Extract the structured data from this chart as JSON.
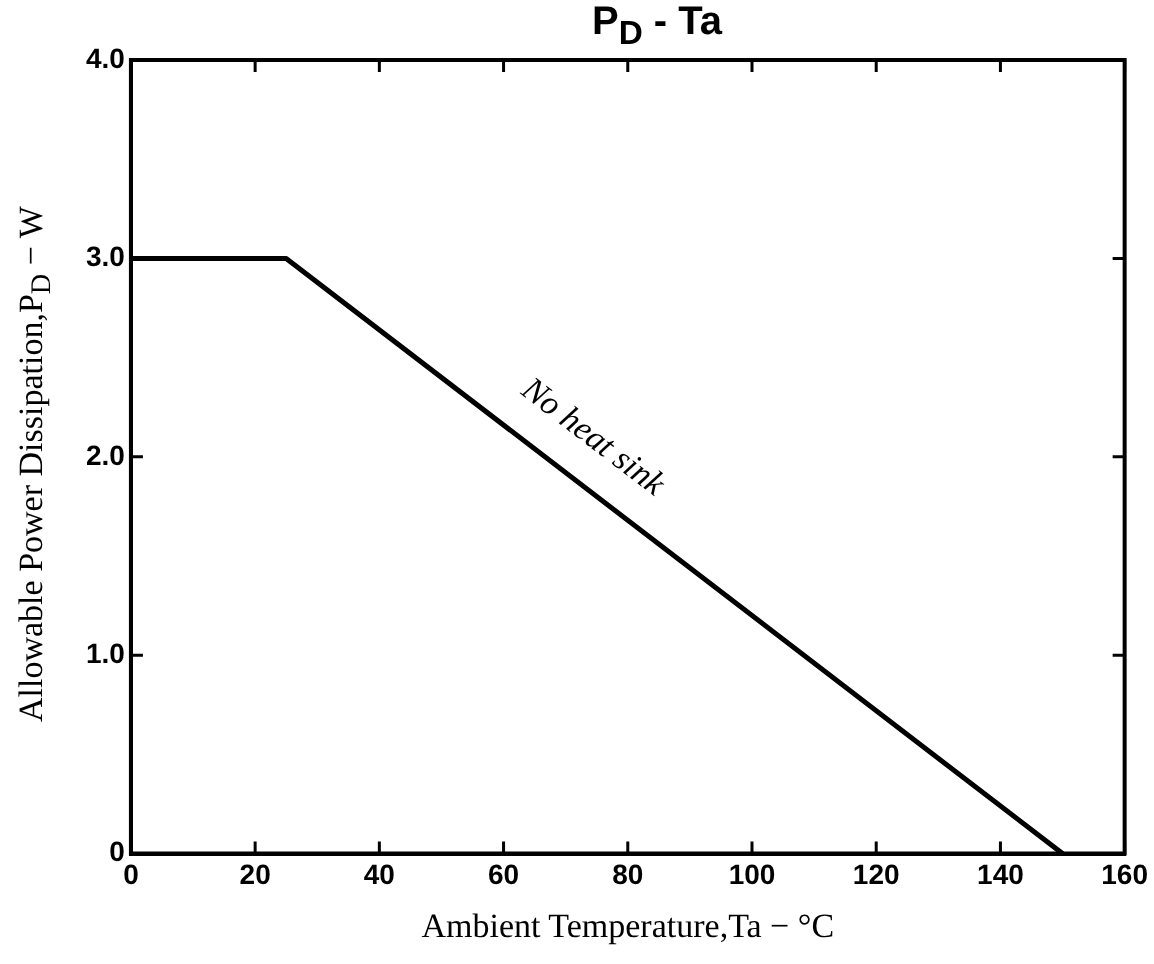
{
  "chart_data": {
    "type": "line",
    "title": "P$_{D}$ - Ta",
    "xlabel": "Ambient Temperature,Ta − °C",
    "ylabel": "Allowable Power Dissipation,P$_{D}$ − W",
    "series": [
      {
        "x": [
          0,
          25,
          150
        ],
        "values": [
          3.0,
          3.0,
          0
        ],
        "color": "#000000"
      }
    ],
    "xlim": [
      0,
      160
    ],
    "xticks": [
      0,
      20,
      40,
      60,
      80,
      100,
      120,
      140,
      160
    ],
    "ylim": [
      0,
      4
    ],
    "yticks": [
      0,
      {
        "value": 1,
        "label": "1.0"
      },
      {
        "value": 2,
        "label": "2.0"
      },
      {
        "value": 3,
        "label": "3.0"
      },
      {
        "value": 4,
        "label": "4.0"
      }
    ],
    "annotations": [
      "No heat sink"
    ],
    "grid": false,
    "legend": false,
    "marker": "none",
    "line_style": "solid"
  }
}
